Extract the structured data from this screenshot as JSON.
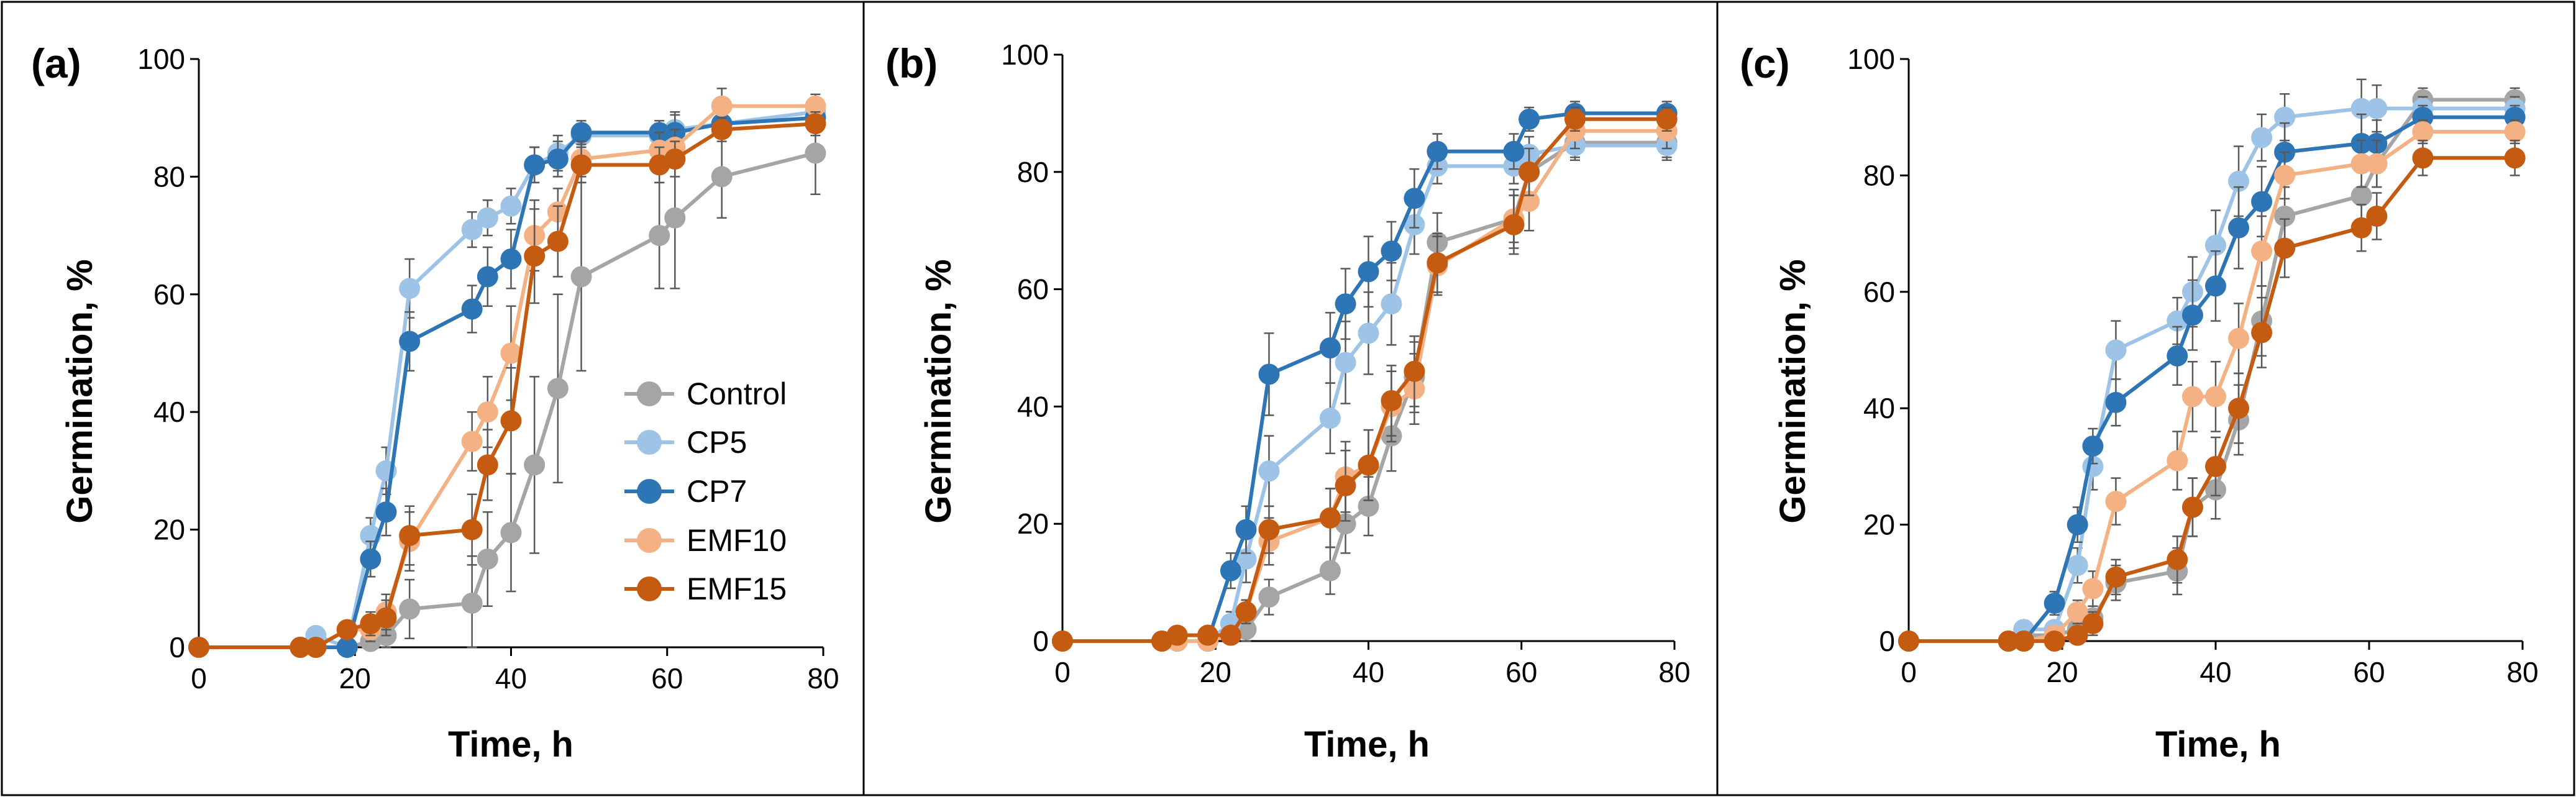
{
  "figure": {
    "legend": [
      "Control",
      "CP5",
      "CP7",
      "EMF10",
      "EMF15"
    ]
  },
  "chart_data": [
    {
      "type": "line",
      "panel_label": "(a)",
      "xlabel": "Time, h",
      "ylabel": "Germination, %",
      "xlim": [
        0,
        80
      ],
      "ylim": [
        0,
        100
      ],
      "xticks": [
        "0",
        "20",
        "40",
        "60",
        "80"
      ],
      "yticks": [
        "0",
        "20",
        "40",
        "60",
        "80",
        "100"
      ],
      "legend": [
        "Control",
        "CP5",
        "CP7",
        "EMF10",
        "EMF15"
      ],
      "x": [
        0,
        13,
        15,
        19,
        22,
        24,
        27,
        35,
        37,
        40,
        43,
        46,
        49,
        59,
        61,
        67,
        79
      ],
      "series": [
        {
          "name": "Control",
          "color": "#a5a5a5",
          "values": [
            0,
            0,
            0,
            0,
            1,
            2,
            6.5,
            7.5,
            15,
            19.5,
            31,
            44,
            63,
            70,
            73,
            80,
            84
          ],
          "errors": [
            0,
            0,
            0,
            0,
            1,
            2,
            5,
            8,
            8,
            10,
            15,
            16,
            16,
            9,
            12,
            7,
            7
          ]
        },
        {
          "name": "CP5",
          "color": "#9dc3e6",
          "values": [
            0,
            0,
            2,
            0,
            19,
            30,
            61,
            71,
            73,
            75,
            82,
            84,
            87,
            87,
            88,
            89,
            91
          ],
          "errors": [
            0,
            0,
            1,
            1,
            3,
            4,
            5,
            3,
            3,
            3,
            3,
            3,
            2,
            2,
            3,
            2,
            2
          ]
        },
        {
          "name": "CP7",
          "color": "#2e75b6",
          "values": [
            0,
            0,
            0,
            0,
            15,
            23,
            52,
            57.5,
            63,
            66,
            82,
            83,
            87.5,
            87.5,
            87.5,
            89,
            90
          ],
          "errors": [
            0,
            0,
            0,
            1,
            3,
            4,
            5,
            4,
            5,
            5,
            3,
            3,
            2,
            2,
            3,
            2,
            2
          ]
        },
        {
          "name": "EMF10",
          "color": "#f4b183",
          "values": [
            0,
            0,
            0,
            3,
            3,
            6,
            18,
            35,
            40,
            50,
            70,
            74,
            83,
            84.5,
            85,
            92,
            92
          ],
          "errors": [
            0,
            0,
            0,
            1,
            2,
            3,
            5,
            5,
            6,
            8,
            6,
            4,
            3,
            3,
            3,
            3,
            2
          ]
        },
        {
          "name": "EMF15",
          "color": "#c55a11",
          "values": [
            0,
            0,
            0,
            3,
            4,
            5,
            19,
            20,
            31,
            38.5,
            66.5,
            69,
            82,
            82,
            83,
            88,
            89
          ],
          "errors": [
            0,
            0,
            0,
            1,
            2,
            3,
            5,
            6,
            6,
            9,
            8,
            6,
            3,
            3,
            3,
            2,
            2
          ]
        }
      ]
    },
    {
      "type": "line",
      "panel_label": "(b)",
      "xlabel": "Time, h",
      "ylabel": "Germination, %",
      "xlim": [
        0,
        80
      ],
      "ylim": [
        0,
        100
      ],
      "xticks": [
        "0",
        "20",
        "40",
        "60",
        "80"
      ],
      "yticks": [
        "0",
        "20",
        "40",
        "60",
        "80",
        "100"
      ],
      "x": [
        0,
        13,
        15,
        19,
        22,
        24,
        27,
        35,
        37,
        40,
        43,
        46,
        49,
        59,
        61,
        67,
        79
      ],
      "series": [
        {
          "name": "Control",
          "color": "#a5a5a5",
          "values": [
            0,
            0,
            0,
            0,
            1,
            2,
            7.5,
            12,
            20,
            23,
            35,
            45,
            68,
            72,
            80,
            85,
            85
          ],
          "errors": [
            0,
            0,
            0,
            0,
            1,
            2,
            3,
            4,
            5,
            5,
            6,
            6,
            5,
            4,
            4,
            3,
            3
          ]
        },
        {
          "name": "CP5",
          "color": "#9dc3e6",
          "values": [
            0,
            0,
            0,
            0,
            3,
            14,
            29,
            38,
            47.5,
            52.5,
            57.5,
            71,
            81,
            81,
            83,
            84.5,
            84.5
          ],
          "errors": [
            0,
            0,
            0,
            0,
            2,
            4,
            6,
            6,
            7,
            7,
            7,
            5,
            3,
            3,
            3,
            2,
            2
          ]
        },
        {
          "name": "CP7",
          "color": "#2e75b6",
          "values": [
            0,
            0,
            0,
            0,
            12,
            19,
            45.5,
            50,
            57.5,
            63,
            66.5,
            75.5,
            83.5,
            83.5,
            89,
            90,
            90
          ],
          "errors": [
            0,
            0,
            0,
            0,
            3,
            4,
            7,
            6,
            6,
            6,
            5,
            5,
            3,
            3,
            2,
            2,
            2
          ]
        },
        {
          "name": "EMF10",
          "color": "#f4b183",
          "values": [
            0,
            0,
            0,
            0,
            1,
            5,
            17,
            21,
            28,
            30,
            40,
            43,
            64,
            72,
            75,
            87,
            87
          ],
          "errors": [
            0,
            0,
            0,
            0,
            1,
            2,
            4,
            5,
            6,
            6,
            6,
            6,
            5,
            5,
            5,
            3,
            3
          ]
        },
        {
          "name": "EMF15",
          "color": "#c55a11",
          "values": [
            0,
            0,
            1,
            1,
            1,
            5,
            19,
            21,
            26.5,
            30,
            41,
            46,
            64.5,
            71,
            80,
            89,
            89
          ],
          "errors": [
            0,
            0,
            0,
            1,
            1,
            2,
            4,
            5,
            6,
            6,
            6,
            6,
            5,
            5,
            4,
            2,
            2
          ]
        }
      ]
    },
    {
      "type": "line",
      "panel_label": "(c)",
      "xlabel": "Time, h",
      "ylabel": "Germination, %",
      "xlim": [
        0,
        80
      ],
      "ylim": [
        0,
        100
      ],
      "xticks": [
        "0",
        "20",
        "40",
        "60",
        "80"
      ],
      "yticks": [
        "0",
        "20",
        "40",
        "60",
        "80",
        "100"
      ],
      "x": [
        0,
        13,
        15,
        19,
        22,
        24,
        27,
        35,
        37,
        40,
        43,
        46,
        49,
        59,
        61,
        67,
        79
      ],
      "series": [
        {
          "name": "Control",
          "color": "#a5a5a5",
          "values": [
            0,
            0,
            1,
            1,
            2,
            4,
            10,
            12,
            23,
            26,
            38,
            55,
            73,
            76.5,
            82,
            93,
            93
          ],
          "errors": [
            0,
            0,
            0,
            1,
            1,
            2,
            3,
            4,
            5,
            5,
            6,
            6,
            5,
            5,
            4,
            2,
            2
          ]
        },
        {
          "name": "CP5",
          "color": "#9dc3e6",
          "values": [
            0,
            0,
            2,
            2,
            13,
            30,
            50,
            55,
            60,
            68,
            79,
            86.5,
            90,
            91.5,
            91.5,
            91.5,
            91.5
          ],
          "errors": [
            0,
            0,
            1,
            1,
            3,
            4,
            5,
            4,
            6,
            6,
            6,
            4,
            4,
            5,
            4,
            2,
            2
          ]
        },
        {
          "name": "CP7",
          "color": "#2e75b6",
          "values": [
            0,
            0,
            0,
            6.5,
            20,
            33.5,
            41,
            49,
            56,
            61,
            71,
            75.5,
            84,
            85.5,
            85.5,
            90,
            90
          ],
          "errors": [
            0,
            0,
            0,
            2,
            3,
            3,
            4,
            5,
            6,
            6,
            7,
            6,
            5,
            5,
            4,
            2,
            2
          ]
        },
        {
          "name": "EMF10",
          "color": "#f4b183",
          "values": [
            0,
            0,
            0,
            1,
            5,
            9,
            24,
            31,
            42,
            42,
            52,
            67,
            80,
            82,
            82,
            87.5,
            87.5
          ],
          "errors": [
            0,
            0,
            0,
            1,
            2,
            3,
            4,
            5,
            6,
            6,
            6,
            6,
            4,
            4,
            4,
            2,
            2
          ]
        },
        {
          "name": "EMF15",
          "color": "#c55a11",
          "values": [
            0,
            0,
            0,
            0,
            1,
            3,
            11,
            14,
            23,
            30,
            40,
            53,
            67.5,
            71,
            73,
            83,
            83
          ],
          "errors": [
            0,
            0,
            0,
            0,
            1,
            2,
            3,
            4,
            5,
            5,
            6,
            6,
            5,
            4,
            4,
            3,
            3
          ]
        }
      ]
    }
  ]
}
